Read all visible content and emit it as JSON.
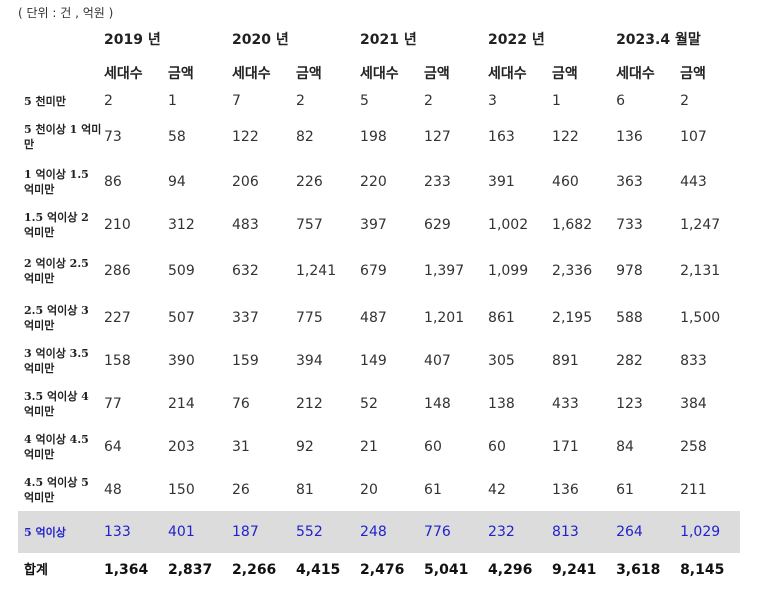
{
  "unit_note": "( 단위 : 건 , 억원 )",
  "years": [
    "2019 년",
    "2020 년",
    "2021 년",
    "2022 년",
    "2023.4 월말"
  ],
  "sub_headers": [
    "세대수",
    "금액"
  ],
  "rows": [
    {
      "label": "5 천미만",
      "values": [
        "2",
        "1",
        "7",
        "2",
        "5",
        "2",
        "3",
        "1",
        "6",
        "2"
      ]
    },
    {
      "label": "5 천이상 1 억미만",
      "values": [
        "73",
        "58",
        "122",
        "82",
        "198",
        "127",
        "163",
        "122",
        "136",
        "107"
      ]
    },
    {
      "label": "1 억이상 1.5 억미만",
      "values": [
        "86",
        "94",
        "206",
        "226",
        "220",
        "233",
        "391",
        "460",
        "363",
        "443"
      ]
    },
    {
      "label": "1.5 억이상 2 억미만",
      "values": [
        "210",
        "312",
        "483",
        "757",
        "397",
        "629",
        "1,002",
        "1,682",
        "733",
        "1,247"
      ]
    },
    {
      "label": "2 억이상 2.5 억미만",
      "values": [
        "286",
        "509",
        "632",
        "1,241",
        "679",
        "1,397",
        "1,099",
        "2,336",
        "978",
        "2,131"
      ]
    },
    {
      "label": "2.5 억이상 3 억미만",
      "values": [
        "227",
        "507",
        "337",
        "775",
        "487",
        "1,201",
        "861",
        "2,195",
        "588",
        "1,500"
      ]
    },
    {
      "label": "3 억이상 3.5 억미만",
      "values": [
        "158",
        "390",
        "159",
        "394",
        "149",
        "407",
        "305",
        "891",
        "282",
        "833"
      ]
    },
    {
      "label": "3.5 억이상 4 억미만",
      "values": [
        "77",
        "214",
        "76",
        "212",
        "52",
        "148",
        "138",
        "433",
        "123",
        "384"
      ]
    },
    {
      "label": "4 억이상 4.5 억미만",
      "values": [
        "64",
        "203",
        "31",
        "92",
        "21",
        "60",
        "60",
        "171",
        "84",
        "258"
      ]
    },
    {
      "label": "4.5 억이상 5 억미만",
      "values": [
        "48",
        "150",
        "26",
        "81",
        "20",
        "61",
        "42",
        "136",
        "61",
        "211"
      ]
    },
    {
      "label": "5 억이상",
      "values": [
        "133",
        "401",
        "187",
        "552",
        "248",
        "776",
        "232",
        "813",
        "264",
        "1,029"
      ],
      "highlight": true
    },
    {
      "label": "합계",
      "values": [
        "1,364",
        "2,837",
        "2,266",
        "4,415",
        "2,476",
        "5,041",
        "4,296",
        "9,241",
        "3,618",
        "8,145"
      ],
      "total": true
    }
  ],
  "colors": {
    "highlight_bg": "#dcdcdc",
    "highlight_text": "#2222cc"
  }
}
